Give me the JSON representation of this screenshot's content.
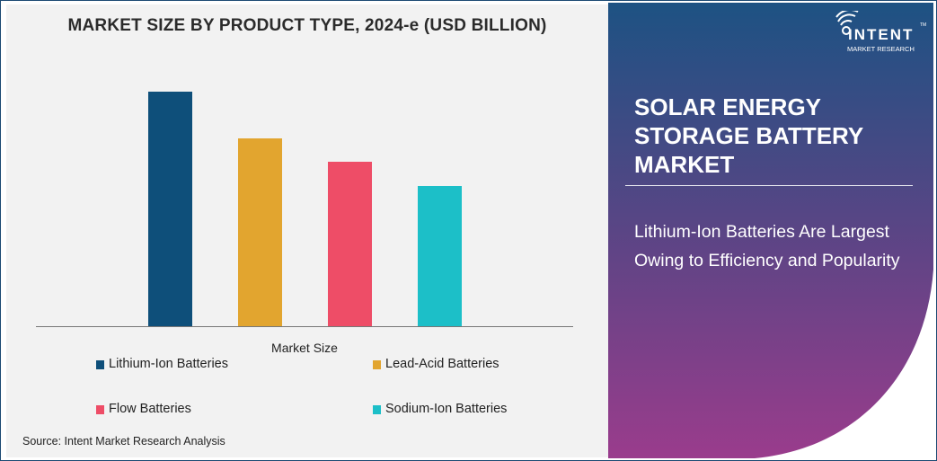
{
  "chart_data": {
    "type": "bar",
    "title": "MARKET SIZE BY PRODUCT TYPE, 2024-e (USD BILLION)",
    "xlabel": "Market Size",
    "ylabel": "",
    "ylim": [
      0,
      300
    ],
    "grid": false,
    "legend_position": "bottom",
    "categories": [
      "Lithium-Ion Batteries",
      "Lead-Acid Batteries",
      "Flow Batteries",
      "Sodium-Ion Batteries"
    ],
    "values": [
      261,
      209,
      183,
      156
    ],
    "colors": [
      "#0e4f7a",
      "#e2a52f",
      "#ee4d67",
      "#1cbfc8"
    ]
  },
  "source": "Source: Intent Market Research Analysis",
  "panel": {
    "title": "SOLAR ENERGY STORAGE BATTERY MARKET",
    "subtitle": "Lithium-Ion Batteries Are Largest Owing to Efficiency and Popularity",
    "gradient_top": "#1d5283",
    "gradient_bottom": "#9a3c8c"
  },
  "logo": {
    "name": "INTENT",
    "tm": "TM",
    "sub": "MARKET RESEARCH"
  }
}
